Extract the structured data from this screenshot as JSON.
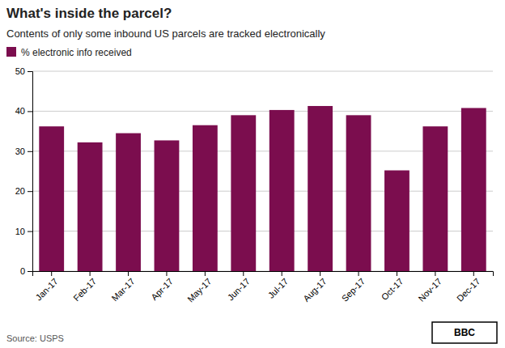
{
  "chart_data": {
    "type": "bar",
    "title": "What's inside the parcel?",
    "subtitle": "Contents of only some inbound US parcels are tracked electronically",
    "source": "Source: USPS",
    "annotations": [
      "BBC"
    ],
    "categories": [
      "Jan-17",
      "Feb-17",
      "Mar-17",
      "Apr-17",
      "May-17",
      "Jun-17",
      "Jul-17",
      "Aug-17",
      "Sep-17",
      "Oct-17",
      "Nov-17",
      "Dec-17"
    ],
    "series": [
      {
        "name": "% electronic info received",
        "color": "#7b0d4e",
        "values": [
          36.2,
          32.2,
          34.5,
          32.7,
          36.5,
          39.0,
          40.3,
          41.3,
          39.0,
          25.2,
          36.2,
          40.8
        ]
      }
    ],
    "ylim": [
      0,
      50
    ],
    "yticks": [
      0,
      10,
      20,
      30,
      40,
      50
    ],
    "grid": true,
    "legend": "upper left"
  }
}
